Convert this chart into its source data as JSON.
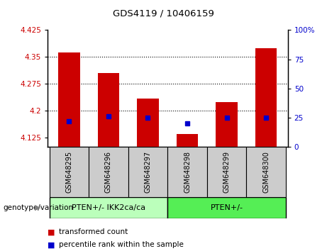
{
  "title": "GDS4119 / 10406159",
  "samples": [
    "GSM648295",
    "GSM648296",
    "GSM648297",
    "GSM648298",
    "GSM648299",
    "GSM648300"
  ],
  "red_values": [
    4.362,
    4.305,
    4.235,
    4.135,
    4.225,
    4.375
  ],
  "blue_values": [
    22,
    26,
    25,
    20,
    25,
    25
  ],
  "ylim_left": [
    4.1,
    4.425
  ],
  "ylim_right": [
    0,
    100
  ],
  "yticks_left": [
    4.125,
    4.2,
    4.275,
    4.35,
    4.425
  ],
  "yticks_right": [
    0,
    25,
    50,
    75,
    100
  ],
  "ytick_labels_left": [
    "4.125",
    "4.2",
    "4.275",
    "4.35",
    "4.425"
  ],
  "ytick_labels_right": [
    "0",
    "25",
    "50",
    "75",
    "100%"
  ],
  "baseline": 4.1,
  "group1_label": "PTEN+/- IKK2ca/ca",
  "group2_label": "PTEN+/-",
  "group1_indices": [
    0,
    1,
    2
  ],
  "group2_indices": [
    3,
    4,
    5
  ],
  "group_label_prefix": "genotype/variation",
  "legend_red": "transformed count",
  "legend_blue": "percentile rank within the sample",
  "red_color": "#cc0000",
  "blue_color": "#0000cc",
  "group1_color": "#bbffbb",
  "group2_color": "#55ee55",
  "sample_box_color": "#cccccc",
  "bar_width": 0.55,
  "dotted_gridlines": [
    4.2,
    4.275,
    4.35
  ],
  "tick_label_color_left": "#cc0000",
  "tick_label_color_right": "#0000cc",
  "xlim": [
    -0.55,
    5.55
  ]
}
